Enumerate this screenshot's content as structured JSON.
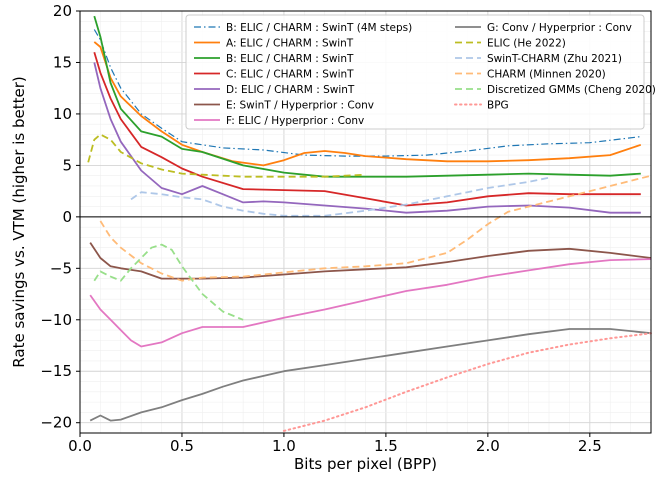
{
  "chart_data": {
    "type": "line",
    "title": "",
    "xlabel": "Bits per pixel (BPP)",
    "ylabel": "Rate savings vs. VTM (higher is better)",
    "xlim": [
      0,
      2.8
    ],
    "ylim": [
      -21,
      20
    ],
    "grid": true,
    "legend_placement": "top-right",
    "x_ticks": [
      0.0,
      0.5,
      1.0,
      1.5,
      2.0,
      2.5
    ],
    "x_tick_labels": [
      "0.0",
      "0.5",
      "1.0",
      "1.5",
      "2.0",
      "2.5"
    ],
    "y_ticks": [
      20,
      15,
      10,
      5,
      0,
      -5,
      -10,
      -15,
      -20
    ],
    "y_tick_labels": [
      "20",
      "15",
      "10",
      "5",
      "0",
      "−5",
      "−10",
      "−15",
      "−20"
    ],
    "series": [
      {
        "name": "B: ELIC / CHARM : SwinT (4M steps)",
        "color": "#1f77b4",
        "dash": "dashdot",
        "width": 1.2,
        "x": [
          0.07,
          0.1,
          0.15,
          0.2,
          0.3,
          0.4,
          0.5,
          0.7,
          0.9,
          1.1,
          1.3,
          1.5,
          1.7,
          1.9,
          2.1,
          2.3,
          2.5,
          2.75
        ],
        "y": [
          18.2,
          17.2,
          14.5,
          12.5,
          10.0,
          8.6,
          7.3,
          6.7,
          6.5,
          6.0,
          5.9,
          5.9,
          6.0,
          6.4,
          6.9,
          7.1,
          7.2,
          7.8
        ]
      },
      {
        "name": "A: ELIC / CHARM : SwinT",
        "color": "#ff7f0e",
        "dash": "solid",
        "width": 1.8,
        "x": [
          0.07,
          0.1,
          0.15,
          0.2,
          0.3,
          0.4,
          0.5,
          0.6,
          0.75,
          0.9,
          1.0,
          1.1,
          1.2,
          1.3,
          1.4,
          1.6,
          1.8,
          2.0,
          2.2,
          2.4,
          2.6,
          2.75
        ],
        "y": [
          17.0,
          16.5,
          13.5,
          11.7,
          9.8,
          8.3,
          7.0,
          6.3,
          5.4,
          5.0,
          5.5,
          6.2,
          6.4,
          6.2,
          5.9,
          5.6,
          5.4,
          5.4,
          5.5,
          5.7,
          6.0,
          7.0
        ]
      },
      {
        "name": "B: ELIC / CHARM : SwinT",
        "color": "#2ca02c",
        "dash": "solid",
        "width": 1.8,
        "x": [
          0.07,
          0.1,
          0.15,
          0.2,
          0.3,
          0.4,
          0.5,
          0.6,
          0.8,
          1.0,
          1.2,
          1.4,
          1.6,
          1.8,
          2.0,
          2.2,
          2.4,
          2.6,
          2.75
        ],
        "y": [
          19.5,
          17.5,
          13.0,
          10.5,
          8.3,
          7.8,
          6.6,
          6.3,
          5.0,
          4.3,
          3.9,
          3.9,
          3.9,
          4.0,
          4.1,
          4.2,
          4.1,
          4.0,
          4.2
        ]
      },
      {
        "name": "C: ELIC / CHARM : SwinT",
        "color": "#d62728",
        "dash": "solid",
        "width": 1.8,
        "x": [
          0.07,
          0.1,
          0.15,
          0.2,
          0.3,
          0.4,
          0.5,
          0.6,
          0.8,
          1.0,
          1.2,
          1.4,
          1.6,
          1.8,
          2.0,
          2.2,
          2.4,
          2.6,
          2.75
        ],
        "y": [
          16.0,
          14.0,
          11.5,
          9.5,
          6.8,
          5.8,
          4.7,
          3.9,
          2.7,
          2.6,
          2.5,
          1.8,
          1.1,
          1.4,
          2.0,
          2.3,
          2.2,
          2.2,
          2.2
        ]
      },
      {
        "name": "D: ELIC / CHARM : SwinT",
        "color": "#9467bd",
        "dash": "solid",
        "width": 1.8,
        "x": [
          0.07,
          0.1,
          0.15,
          0.2,
          0.3,
          0.4,
          0.5,
          0.6,
          0.7,
          0.8,
          0.9,
          1.0,
          1.2,
          1.4,
          1.6,
          1.8,
          2.0,
          2.2,
          2.4,
          2.6,
          2.75
        ],
        "y": [
          15.0,
          12.5,
          9.5,
          7.3,
          4.5,
          2.8,
          2.2,
          3.0,
          2.2,
          1.4,
          1.5,
          1.4,
          1.1,
          0.8,
          0.4,
          0.6,
          1.0,
          1.1,
          0.9,
          0.4,
          0.4
        ]
      },
      {
        "name": "E: SwinT / Hyperprior : Conv",
        "color": "#8c564b",
        "dash": "solid",
        "width": 1.8,
        "x": [
          0.05,
          0.1,
          0.15,
          0.2,
          0.3,
          0.4,
          0.5,
          0.6,
          0.8,
          1.0,
          1.2,
          1.4,
          1.6,
          1.8,
          2.0,
          2.2,
          2.4,
          2.6,
          2.8
        ],
        "y": [
          -2.5,
          -4.0,
          -4.8,
          -5.0,
          -5.3,
          -6.0,
          -6.0,
          -6.0,
          -5.9,
          -5.6,
          -5.3,
          -5.1,
          -4.9,
          -4.4,
          -3.8,
          -3.3,
          -3.1,
          -3.5,
          -4.0
        ]
      },
      {
        "name": "F: ELIC / Hyperprior : Conv",
        "color": "#e377c2",
        "dash": "solid",
        "width": 1.8,
        "x": [
          0.05,
          0.1,
          0.15,
          0.2,
          0.25,
          0.3,
          0.4,
          0.5,
          0.6,
          0.8,
          1.0,
          1.2,
          1.4,
          1.6,
          1.8,
          2.0,
          2.2,
          2.4,
          2.6,
          2.8
        ],
        "y": [
          -7.6,
          -9.0,
          -10.0,
          -11.0,
          -12.0,
          -12.6,
          -12.2,
          -11.3,
          -10.7,
          -10.7,
          -9.8,
          -9.0,
          -8.1,
          -7.2,
          -6.6,
          -5.8,
          -5.2,
          -4.6,
          -4.2,
          -4.1
        ]
      },
      {
        "name": "G: Conv / Hyperprior : Conv",
        "color": "#7f7f7f",
        "dash": "solid",
        "width": 1.8,
        "x": [
          0.05,
          0.1,
          0.15,
          0.2,
          0.3,
          0.4,
          0.5,
          0.6,
          0.7,
          0.8,
          1.0,
          1.2,
          1.4,
          1.6,
          1.8,
          2.0,
          2.2,
          2.4,
          2.6,
          2.8
        ],
        "y": [
          -19.8,
          -19.3,
          -19.8,
          -19.7,
          -19.0,
          -18.5,
          -17.8,
          -17.2,
          -16.5,
          -15.9,
          -15.0,
          -14.4,
          -13.8,
          -13.2,
          -12.6,
          -12.0,
          -11.4,
          -10.9,
          -10.9,
          -11.3
        ]
      },
      {
        "name": "ELIC (He 2022)",
        "color": "#bcbd22",
        "dash": "dashed",
        "width": 1.8,
        "x": [
          0.04,
          0.07,
          0.1,
          0.15,
          0.2,
          0.3,
          0.4,
          0.5,
          0.6,
          0.8,
          1.0,
          1.2,
          1.4
        ],
        "y": [
          5.3,
          7.5,
          8.0,
          7.5,
          6.3,
          5.2,
          4.6,
          4.2,
          4.1,
          3.9,
          3.9,
          3.9,
          4.1
        ]
      },
      {
        "name": "SwinT-CHARM (Zhu 2021)",
        "color": "#aec7e8",
        "dash": "dashed",
        "width": 1.8,
        "x": [
          0.25,
          0.3,
          0.4,
          0.5,
          0.6,
          0.7,
          0.8,
          0.9,
          1.0,
          1.2,
          1.4,
          1.6,
          1.8,
          2.0,
          2.2,
          2.3
        ],
        "y": [
          1.7,
          2.4,
          2.2,
          1.9,
          1.7,
          1.0,
          0.6,
          0.3,
          0.1,
          0.1,
          0.6,
          1.2,
          2.0,
          2.8,
          3.4,
          3.8
        ]
      },
      {
        "name": "CHARM (Minnen 2020)",
        "color": "#ffbb78",
        "dash": "dashed",
        "width": 1.8,
        "x": [
          0.1,
          0.15,
          0.2,
          0.3,
          0.4,
          0.5,
          0.6,
          0.8,
          1.0,
          1.2,
          1.4,
          1.6,
          1.8,
          1.9,
          2.0,
          2.1,
          2.2,
          2.4,
          2.6,
          2.8
        ],
        "y": [
          -0.4,
          -2.0,
          -3.0,
          -4.5,
          -5.5,
          -6.2,
          -5.9,
          -5.8,
          -5.4,
          -5.0,
          -4.8,
          -4.5,
          -3.5,
          -2.2,
          -0.7,
          0.5,
          1.0,
          2.0,
          3.0,
          4.0
        ]
      },
      {
        "name": "Discretized GMMs (Cheng 2020)",
        "color": "#98df8a",
        "dash": "dashed",
        "width": 1.8,
        "x": [
          0.07,
          0.1,
          0.15,
          0.2,
          0.25,
          0.3,
          0.35,
          0.4,
          0.45,
          0.5,
          0.6,
          0.7,
          0.8
        ],
        "y": [
          -6.2,
          -5.3,
          -5.8,
          -6.2,
          -5.0,
          -4.0,
          -3.0,
          -2.7,
          -3.2,
          -4.8,
          -7.5,
          -9.2,
          -10.0
        ]
      },
      {
        "name": "BPG",
        "color": "#ff9896",
        "dash": "dotted",
        "width": 2.0,
        "x": [
          1.0,
          1.2,
          1.4,
          1.6,
          1.8,
          2.0,
          2.2,
          2.4,
          2.6,
          2.8
        ],
        "y": [
          -20.8,
          -19.8,
          -18.5,
          -17.0,
          -15.6,
          -14.3,
          -13.2,
          -12.4,
          -11.8,
          -11.3
        ]
      }
    ]
  }
}
